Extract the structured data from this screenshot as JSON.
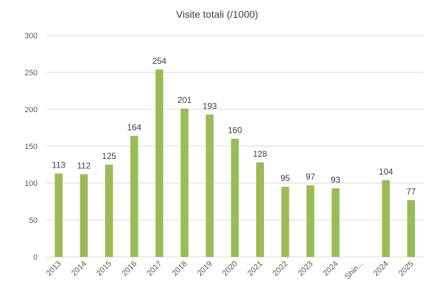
{
  "chart_data": {
    "type": "bar",
    "title": "Visite totali (/1000)",
    "xlabel": "",
    "ylabel": "",
    "ylim": [
      0,
      300
    ],
    "yticks": [
      0,
      50,
      100,
      150,
      200,
      250,
      300
    ],
    "grid": true,
    "legend": "none",
    "bar_color": "#9BBB59",
    "grid_color": "#D9D9D9",
    "categories": [
      "2013",
      "2014",
      "2015",
      "2016",
      "2017",
      "2018",
      "2019",
      "2020",
      "2021",
      "2022",
      "2023",
      "2024",
      "Shin...",
      "2024",
      "2025"
    ],
    "values": [
      113,
      112,
      125,
      164,
      254,
      201,
      193,
      160,
      128,
      95,
      97,
      93,
      null,
      104,
      77
    ]
  }
}
